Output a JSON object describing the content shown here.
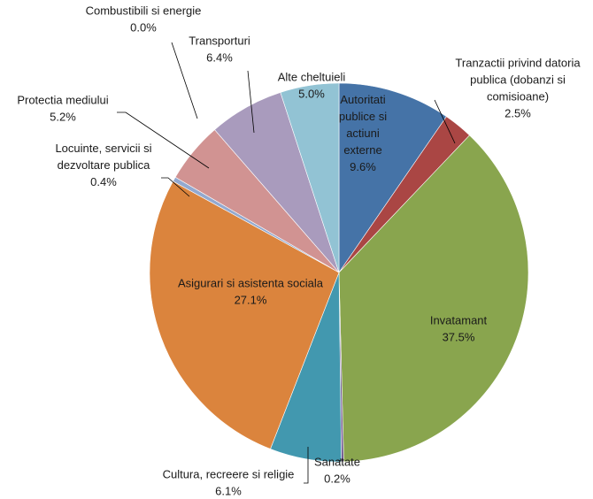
{
  "chart_data": {
    "type": "pie",
    "start_angle_deg": 0,
    "direction": "clockwise",
    "slices": [
      {
        "label": [
          "Autoritati",
          "publice si",
          "actiuni",
          "externe"
        ],
        "value": 9.6,
        "value_label": "9.6%",
        "color": "#4573A7",
        "label_position": "inside"
      },
      {
        "label": [
          "Tranzactii privind datoria",
          "publica (dobanzi si",
          "comisioane)"
        ],
        "value": 2.5,
        "value_label": "2.5%",
        "color": "#AA4644",
        "label_position": "outside"
      },
      {
        "label": [
          "Invatamant"
        ],
        "value": 37.5,
        "value_label": "37.5%",
        "color": "#89A54E",
        "label_position": "inside"
      },
      {
        "label": [
          "Sanatate"
        ],
        "value": 0.2,
        "value_label": "0.2%",
        "color": "#71588F",
        "label_position": "outside"
      },
      {
        "label": [
          "Cultura, recreere si religie"
        ],
        "value": 6.1,
        "value_label": "6.1%",
        "color": "#4298AF",
        "label_position": "outside"
      },
      {
        "label": [
          "Asigurari si asistenta sociala"
        ],
        "value": 27.1,
        "value_label": "27.1%",
        "color": "#DB843D",
        "label_position": "inside"
      },
      {
        "label": [
          "Locuinte, servicii si",
          "dezvoltare publica"
        ],
        "value": 0.4,
        "value_label": "0.4%",
        "color": "#93A9CF",
        "label_position": "outside"
      },
      {
        "label": [
          "Protectia mediului"
        ],
        "value": 5.2,
        "value_label": "5.2%",
        "color": "#D19392",
        "label_position": "outside"
      },
      {
        "label": [
          "Combustibili si energie"
        ],
        "value": 0.0,
        "value_label": "0.0%",
        "color": "#B9CD96",
        "label_position": "outside"
      },
      {
        "label": [
          "Transporturi"
        ],
        "value": 6.4,
        "value_label": "6.4%",
        "color": "#A99BBD",
        "label_position": "outside"
      },
      {
        "label": [
          "Alte cheltuieli"
        ],
        "value": 5.0,
        "value_label": "5.0%",
        "color": "#92C3D4",
        "label_position": "outside"
      }
    ]
  }
}
